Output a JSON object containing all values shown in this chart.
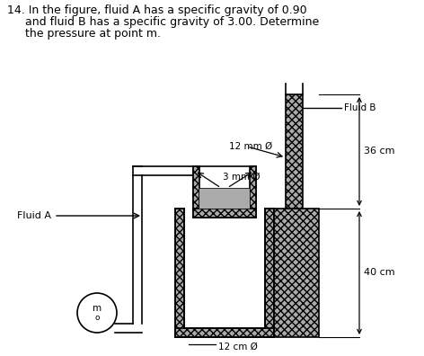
{
  "title_line1": "14. In the figure, fluid A has a specific gravity of 0.90",
  "title_line2": "     and fluid B has a specific gravity of 3.00. Determine",
  "title_line3": "     the pressure at point m.",
  "background_color": "#ffffff",
  "hatch_pattern": "xxxx",
  "fluid_fill_color": "#aaaaaa",
  "fluid_a_label": "Fluid A",
  "fluid_b_label": "Fluid B",
  "label_12mm": "12 mm Ø",
  "label_3mm": "3 mm Ø",
  "label_12cm": "12 cm Ø",
  "label_36cm": "36 cm",
  "label_40cm": "40 cm",
  "label_m": "m",
  "label_o": "o"
}
